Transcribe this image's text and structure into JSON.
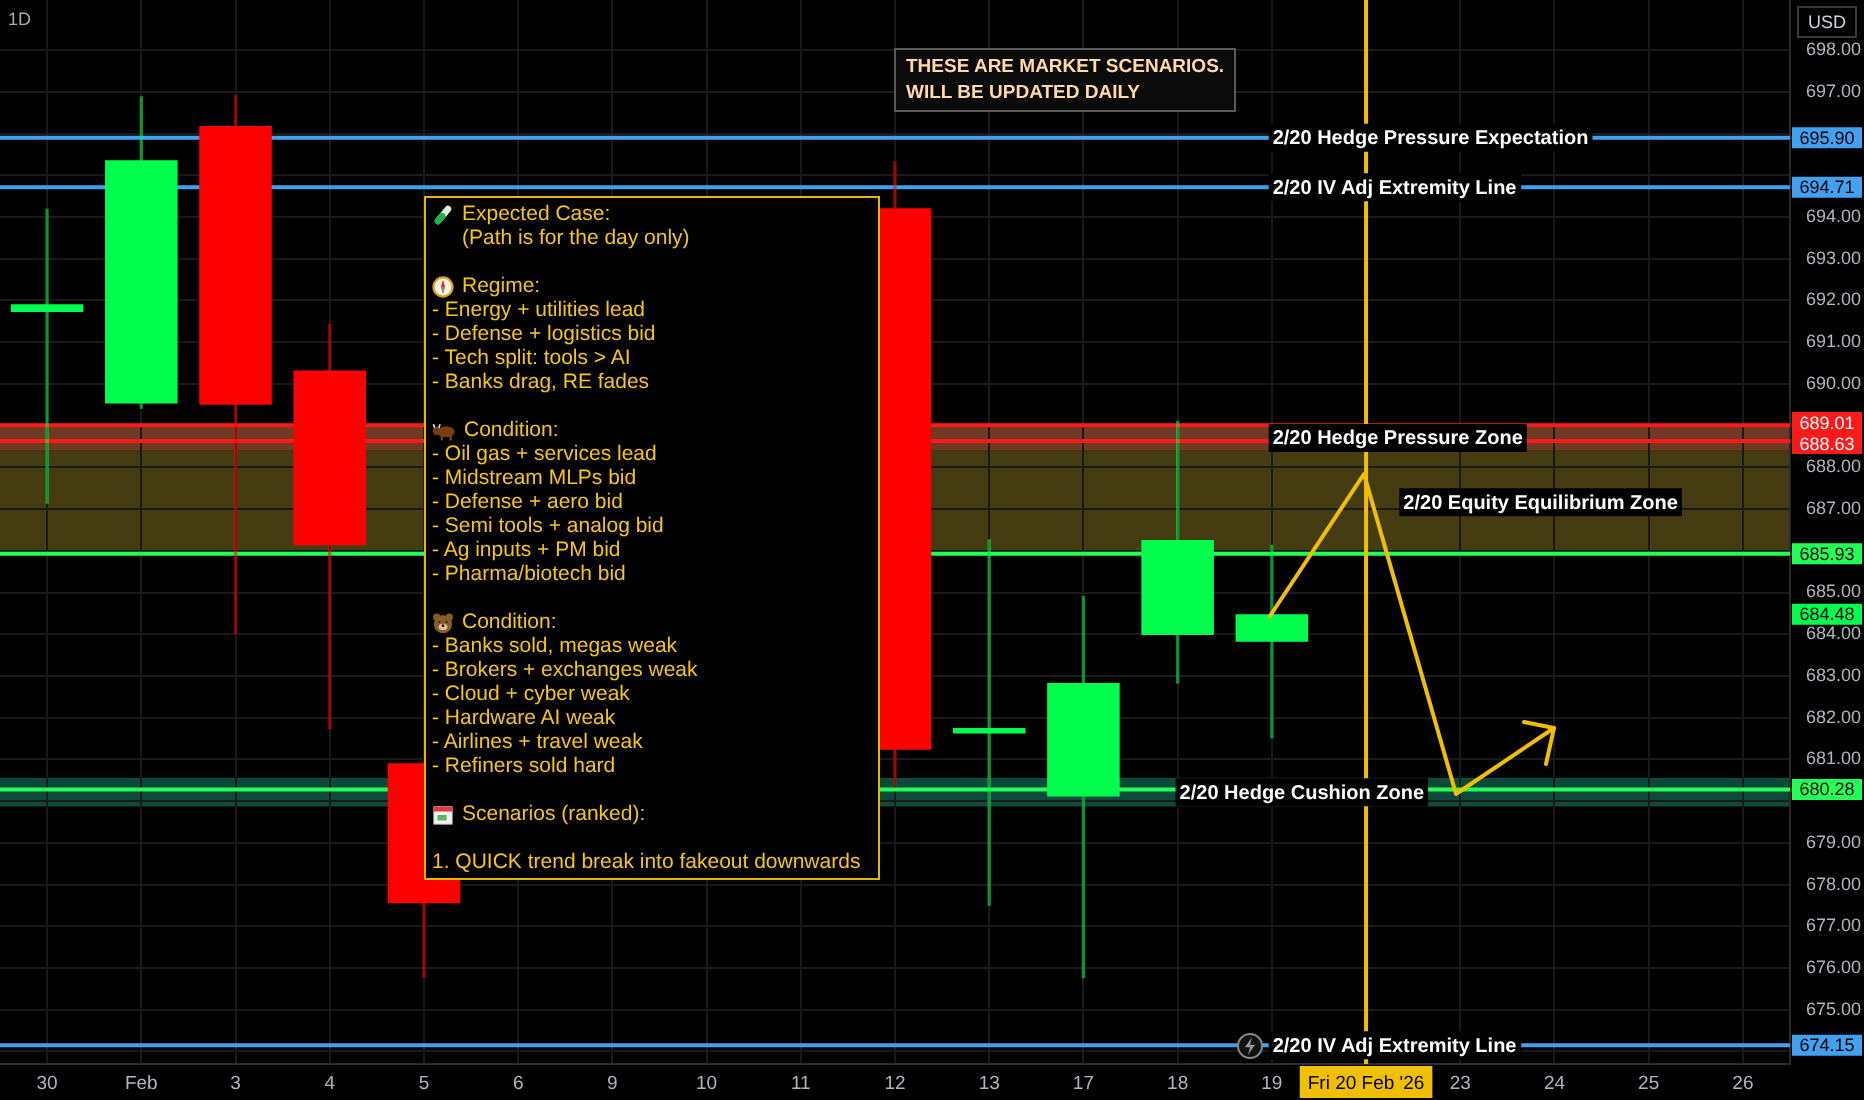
{
  "chart_data": {
    "type": "candlestick",
    "title": "1D",
    "ylabel": "USD",
    "categories": [
      "30",
      "Feb",
      "3",
      "4",
      "5",
      "6",
      "9",
      "10",
      "11",
      "12",
      "13",
      "17",
      "18",
      "19",
      "Fri 20 Feb '26",
      "23",
      "24",
      "25",
      "26"
    ],
    "ohlc": [
      [
        691.72,
        694.18,
        687.14,
        691.91
      ],
      [
        689.53,
        696.88,
        689.42,
        695.36
      ],
      [
        696.18,
        696.91,
        684.02,
        689.5
      ],
      [
        690.32,
        691.42,
        681.74,
        686.13
      ],
      [
        680.91,
        680.91,
        675.78,
        677.55
      ],
      null,
      null,
      null,
      null,
      [
        694.21,
        695.32,
        680.35,
        681.23
      ],
      [
        681.62,
        686.26,
        677.51,
        681.75
      ],
      [
        680.11,
        684.9,
        675.77,
        682.83
      ],
      [
        683.98,
        689.1,
        682.83,
        686.26
      ],
      [
        683.82,
        686.13,
        681.52,
        684.48
      ],
      null,
      null,
      null,
      null,
      null
    ],
    "colors": [
      "#00ff4c",
      "#00ff4c",
      "#ff0000",
      "#ff0000",
      "#ff0000",
      null,
      null,
      null,
      null,
      "#ff0000",
      "#00ff4c",
      "#00ff4c",
      "#00ff4c",
      "#00ff4c",
      null,
      null,
      null,
      null,
      null
    ],
    "ylim": [
      673.7,
      699.2
    ],
    "yticks": [
      {
        "value": 674,
        "label": null
      },
      {
        "value": 675,
        "label": "675.00"
      },
      {
        "value": 676,
        "label": "676.00"
      },
      {
        "value": 677,
        "label": "677.00"
      },
      {
        "value": 678,
        "label": "678.00"
      },
      {
        "value": 679,
        "label": "679.00"
      },
      {
        "value": 680,
        "label": null
      },
      {
        "value": 681,
        "label": "681.00"
      },
      {
        "value": 682,
        "label": "682.00"
      },
      {
        "value": 683,
        "label": "683.00"
      },
      {
        "value": 684,
        "label": "684.00"
      },
      {
        "value": 685,
        "label": "685.00"
      },
      {
        "value": 686,
        "label": null
      },
      {
        "value": 687,
        "label": "687.00"
      },
      {
        "value": 688,
        "label": "688.00"
      },
      {
        "value": 689,
        "label": null
      },
      {
        "value": 690,
        "label": "690.00"
      },
      {
        "value": 691,
        "label": "691.00"
      },
      {
        "value": 692,
        "label": "692.00"
      },
      {
        "value": 693,
        "label": "693.00"
      },
      {
        "value": 694,
        "label": "694.00"
      },
      {
        "value": 695,
        "label": null
      },
      {
        "value": 696,
        "label": null
      },
      {
        "value": 697,
        "label": "697.00"
      },
      {
        "value": 698,
        "label": "698.00"
      }
    ],
    "grid": true,
    "ref_lines": [
      {
        "axis": "y",
        "value": 695.9,
        "label": "2/20 Hedge Pressure Expectation",
        "color": "#42a0f0"
      },
      {
        "axis": "y",
        "value": 694.71,
        "label": "2/20 IV Adj Extremity Line",
        "color": "#42a0f0"
      },
      {
        "axis": "y",
        "value": 689.01,
        "color": "#ff1a1a"
      },
      {
        "axis": "y",
        "value": 688.63,
        "color": "#ff1a1a"
      },
      {
        "axis": "y",
        "value": 685.93,
        "color": "#22ff55"
      },
      {
        "axis": "y",
        "value": 680.28,
        "color": "#22ff55"
      },
      {
        "axis": "y",
        "value": 674.15,
        "label": "2/20 IV Adj Extremity Line",
        "color": "#42a0f0"
      },
      {
        "axis": "x",
        "value": "Fri 20 Feb '26",
        "color": "#f0c000"
      }
    ],
    "bands": [
      {
        "axis": "y",
        "from": 688.4,
        "to": 689.01,
        "label": "2/20 Hedge Pressure Zone",
        "color": "#6e3a24"
      },
      {
        "axis": "y",
        "from": 685.93,
        "to": 688.4,
        "label": "2/20 Equity Equilibrium Zone",
        "color": "#463c12"
      },
      {
        "axis": "y",
        "from": 679.87,
        "to": 680.56,
        "label": "2/20 Hedge Cushion Zone",
        "color": "#0e4a3c"
      }
    ],
    "annotations": [
      "THESE ARE MARKET SCENARIOS.\nWILL BE UPDATED DAILY",
      "Expected Case:\n(Path is for the day only)\n\nRegime:\n- Energy + utilities lead\n- Defense + logistics bid\n- Tech split: tools > AI\n- Banks drag, RE fades\n\nCondition:\n- Oil gas + services lead\n- Midstream MLPs bid\n- Defense + aero bid\n- Semi tools + analog bid\n- Ag inputs + PM bid\n- Pharma/biotech bid\n\nCondition:\n- Banks sold, megas weak\n- Brokers + exchanges weak\n- Cloud + cyber weak\n- Hardware AI weak\n- Airlines + travel weak\n- Refiners sold hard\n\nScenarios (ranked):\n\n1. QUICK trend break into fakeout downwards",
      {
        "text": "695.90",
        "y": 695.9
      },
      {
        "text": "694.71",
        "y": 694.71
      },
      {
        "text": "689.01",
        "y": 689.01
      },
      {
        "text": "688.63",
        "y": 688.63
      },
      {
        "text": "685.93",
        "y": 685.93
      },
      {
        "text": "684.48",
        "y": 684.48
      },
      {
        "text": "680.28",
        "y": 680.28
      },
      {
        "text": "674.15",
        "y": 674.15
      }
    ]
  }
}
